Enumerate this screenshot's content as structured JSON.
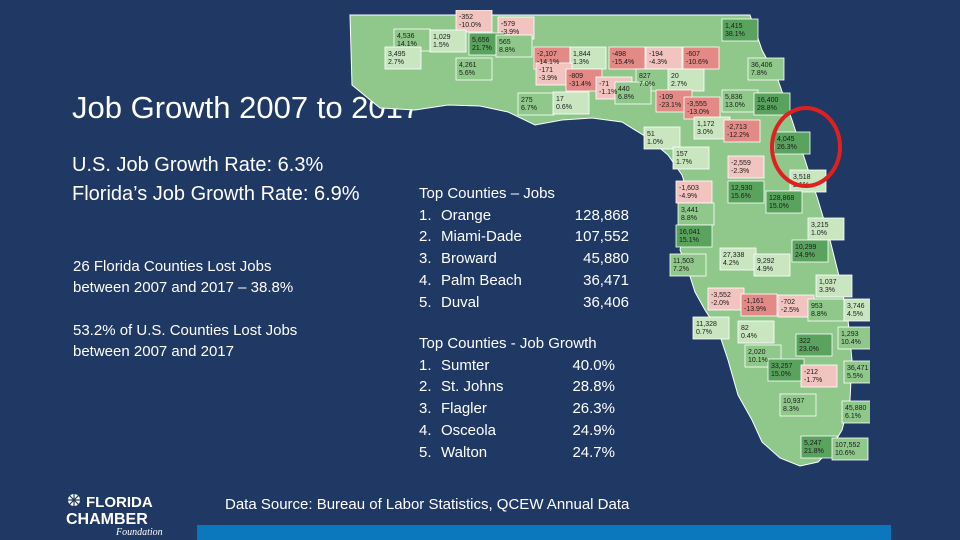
{
  "title": "Job Growth 2007 to 2017",
  "us_rate": "U.S. Job Growth Rate:  6.3%",
  "fl_rate": "Florida’s Job Growth Rate:  6.9%",
  "note_counties_fl": [
    "26 Florida Counties Lost Jobs",
    "between 2007 and 2017 – 38.8%"
  ],
  "note_counties_us": [
    "53.2% of U.S. Counties Lost Jobs",
    "between 2007 and 2017"
  ],
  "top_jobs": {
    "heading": "Top Counties – Jobs",
    "items": [
      {
        "rank": "1.",
        "name": "Orange",
        "value": "128,868"
      },
      {
        "rank": "2.",
        "name": "Miami-Dade",
        "value": "107,552"
      },
      {
        "rank": "3.",
        "name": "Broward",
        "value": "45,880"
      },
      {
        "rank": "4.",
        "name": "Palm Beach",
        "value": "36,471"
      },
      {
        "rank": "5.",
        "name": "Duval",
        "value": "36,406"
      }
    ]
  },
  "top_growth": {
    "heading": "Top Counties - Job Growth",
    "items": [
      {
        "rank": "1.",
        "name": "Sumter",
        "value": "40.0%"
      },
      {
        "rank": "2.",
        "name": "St. Johns",
        "value": "28.8%"
      },
      {
        "rank": "3.",
        "name": "Flagler",
        "value": "26.3%"
      },
      {
        "rank": "4.",
        "name": "Osceola",
        "value": "24.9%"
      },
      {
        "rank": "5.",
        "name": "Walton",
        "value": "24.7%"
      }
    ]
  },
  "source": "Data Source:  Bureau of Labor Statistics, QCEW Annual Data",
  "logo": {
    "line1": "FLORIDA",
    "line2": "CHAMBER",
    "line3": "Foundation"
  },
  "colors": {
    "background": "#1f3864",
    "bar": "#0b78bd",
    "gain_strong": "#5aa35f",
    "gain_mid": "#8fc88a",
    "gain_light": "#c9e6c1",
    "loss_light": "#f2c4c0",
    "loss_strong": "#e48a86",
    "highlight_circle": "#e02020"
  },
  "map_labels": [
    {
      "line1": "-352",
      "line2": "-10.0%"
    },
    {
      "line1": "-579",
      "line2": "-3.9%"
    },
    {
      "line1": "4,536",
      "line2": "14.1%"
    },
    {
      "line1": "1,029",
      "line2": "1.5%"
    },
    {
      "line1": "5,656",
      "line2": "21.7%"
    },
    {
      "line1": "565",
      "line2": "8.8%"
    },
    {
      "line1": "3,495",
      "line2": "2.7%"
    },
    {
      "line1": "-2,107",
      "line2": "-14.1%"
    },
    {
      "line1": "1,844",
      "line2": "1.3%"
    },
    {
      "line1": "-498",
      "line2": "-15.4%"
    },
    {
      "line1": "-194",
      "line2": "-4.3%"
    },
    {
      "line1": "-607",
      "line2": "-10.6%"
    },
    {
      "line1": "1,415",
      "line2": "38.1%"
    },
    {
      "line1": "36,406",
      "line2": "7.8%"
    },
    {
      "line1": "4,261",
      "line2": "5.6%"
    },
    {
      "line1": "-171",
      "line2": "-3.9%"
    },
    {
      "line1": "-809",
      "line2": "-31.4%"
    },
    {
      "line1": "-71",
      "line2": "-1.1%"
    },
    {
      "line1": "827",
      "line2": "7.0%"
    },
    {
      "line1": "20",
      "line2": "2.7%"
    },
    {
      "line1": "440",
      "line2": "6.8%"
    },
    {
      "line1": "275",
      "line2": "6.7%"
    },
    {
      "line1": "17",
      "line2": "0.6%"
    },
    {
      "line1": "-109",
      "line2": "-23.1%"
    },
    {
      "line1": "-3,555",
      "line2": "-13.0%"
    },
    {
      "line1": "5,836",
      "line2": "13.0%"
    },
    {
      "line1": "16,400",
      "line2": "28.8%"
    },
    {
      "line1": "1,172",
      "line2": "3.0%"
    },
    {
      "line1": "-2,713",
      "line2": "-12.2%"
    },
    {
      "line1": "4,045",
      "line2": "26.3%"
    },
    {
      "line1": "51",
      "line2": "1.0%"
    },
    {
      "line1": "157",
      "line2": "1.7%"
    },
    {
      "line1": "-2,559",
      "line2": "-2.3%"
    },
    {
      "line1": "3,518",
      "line2": "2.1%"
    },
    {
      "line1": "-1,603",
      "line2": "-4.9%"
    },
    {
      "line1": "12,930",
      "line2": "15.6%"
    },
    {
      "line1": "128,868",
      "line2": "15.0%"
    },
    {
      "line1": "3,441",
      "line2": "8.8%"
    },
    {
      "line1": "3,215",
      "line2": "1.0%"
    },
    {
      "line1": "16,041",
      "line2": "15.1%"
    },
    {
      "line1": "10,299",
      "line2": "24.9%"
    },
    {
      "line1": "11,503",
      "line2": "7.2%"
    },
    {
      "line1": "27,338",
      "line2": "4.2%"
    },
    {
      "line1": "9,292",
      "line2": "4.9%"
    },
    {
      "line1": "1,037",
      "line2": "3.3%"
    },
    {
      "line1": "-3,552",
      "line2": "-2.0%"
    },
    {
      "line1": "-1,161",
      "line2": "-13.9%"
    },
    {
      "line1": "-702",
      "line2": "-2.5%"
    },
    {
      "line1": "953",
      "line2": "8.8%"
    },
    {
      "line1": "3,746",
      "line2": "4.5%"
    },
    {
      "line1": "11,328",
      "line2": "0.7%"
    },
    {
      "line1": "82",
      "line2": "0.4%"
    },
    {
      "line1": "322",
      "line2": "23.0%"
    },
    {
      "line1": "1,293",
      "line2": "10.4%"
    },
    {
      "line1": "2,020",
      "line2": "10.1%"
    },
    {
      "line1": "33,257",
      "line2": "15.0%"
    },
    {
      "line1": "-212",
      "line2": "-1.7%"
    },
    {
      "line1": "36,471",
      "line2": "5.5%"
    },
    {
      "line1": "10,937",
      "line2": "8.3%"
    },
    {
      "line1": "45,880",
      "line2": "6.1%"
    },
    {
      "line1": "5,247",
      "line2": "21.8%"
    },
    {
      "line1": "107,552",
      "line2": "10.6%"
    }
  ]
}
